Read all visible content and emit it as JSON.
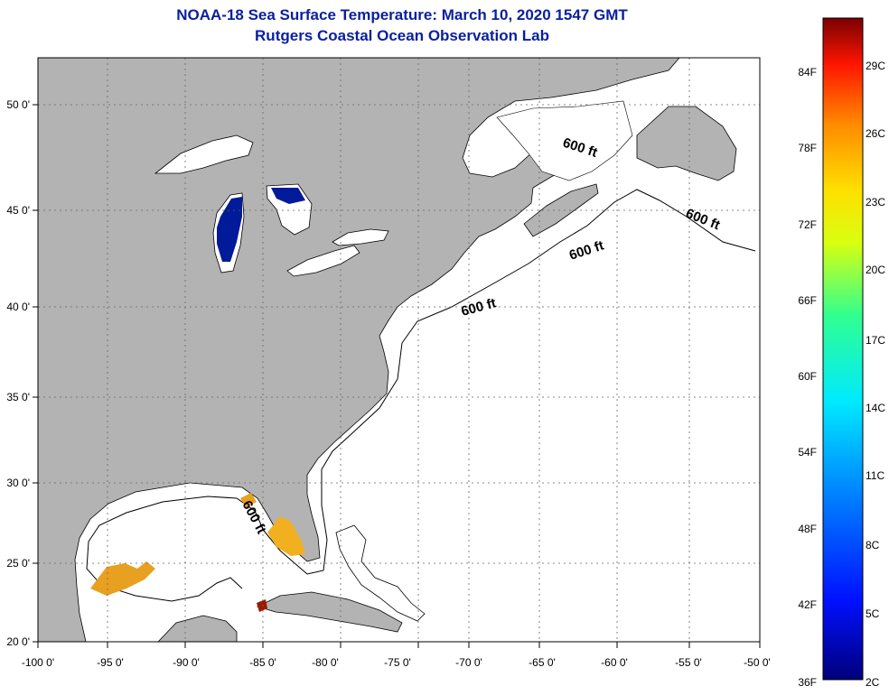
{
  "title": {
    "line1": "NOAA-18 Sea Surface Temperature:  March 10, 2020 1547 GMT",
    "line2": "Rutgers Coastal Ocean Observation Lab"
  },
  "axes": {
    "lon_labels": [
      "-100 0'",
      "-95 0'",
      "-90 0'",
      "-85 0'",
      "-80 0'",
      "-75 0'",
      "-70 0'",
      "-65 0'",
      "-60 0'",
      "-55 0'",
      "-50 0'"
    ],
    "lat_labels": [
      "20 0'",
      "25 0'",
      "30 0'",
      "35 0'",
      "40 0'",
      "45 0'",
      "50 0'"
    ]
  },
  "contours": {
    "label": "600 ft"
  },
  "colorbar": {
    "fahrenheit": [
      "84F",
      "78F",
      "72F",
      "66F",
      "60F",
      "54F",
      "48F",
      "42F",
      "36F"
    ],
    "celsius": [
      "29C",
      "26C",
      "23C",
      "20C",
      "17C",
      "14C",
      "11C",
      "8C",
      "5C",
      "2C"
    ]
  },
  "colors": {
    "land": "#b3b3b3",
    "ocean": "#ffffff",
    "title": "#0a1f9e",
    "cold_lake": "#001a99",
    "warm_patch": "#e8a020"
  }
}
